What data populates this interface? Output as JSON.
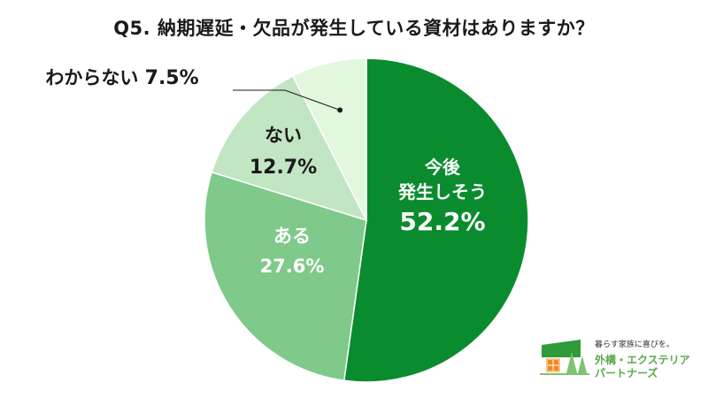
{
  "title": "Q5. 納期遅延・欠品が発生している資材はありますか？",
  "chart_data": {
    "type": "pie",
    "start_angle_deg": 0,
    "direction": "clockwise",
    "slices": [
      {
        "label_lines": [
          "今後",
          "発生しそう"
        ],
        "value": 52.2,
        "value_text": "52.2%",
        "color": "#0a8c2e",
        "label_color": "#ffffff"
      },
      {
        "label_lines": [
          "ある"
        ],
        "value": 27.6,
        "value_text": "27.6%",
        "color": "#7fc98a",
        "label_color": "#ffffff"
      },
      {
        "label_lines": [
          "ない"
        ],
        "value": 12.7,
        "value_text": "12.7%",
        "color": "#c2e5c4",
        "label_color": "#1a1a1a"
      },
      {
        "label_lines": [
          "わからない"
        ],
        "value": 7.5,
        "value_text": "7.5%",
        "color": "#e2f7de",
        "label_color": "#1a1a1a",
        "callout": true
      }
    ]
  },
  "logo": {
    "tagline": "暮らす家族に喜びを。",
    "brand_line1": "外構・エクステリア",
    "brand_line2": "パートナーズ",
    "colors": {
      "roof": "#2f9a3a",
      "window": "#f08a1e",
      "tree": "#7cc46f"
    }
  }
}
